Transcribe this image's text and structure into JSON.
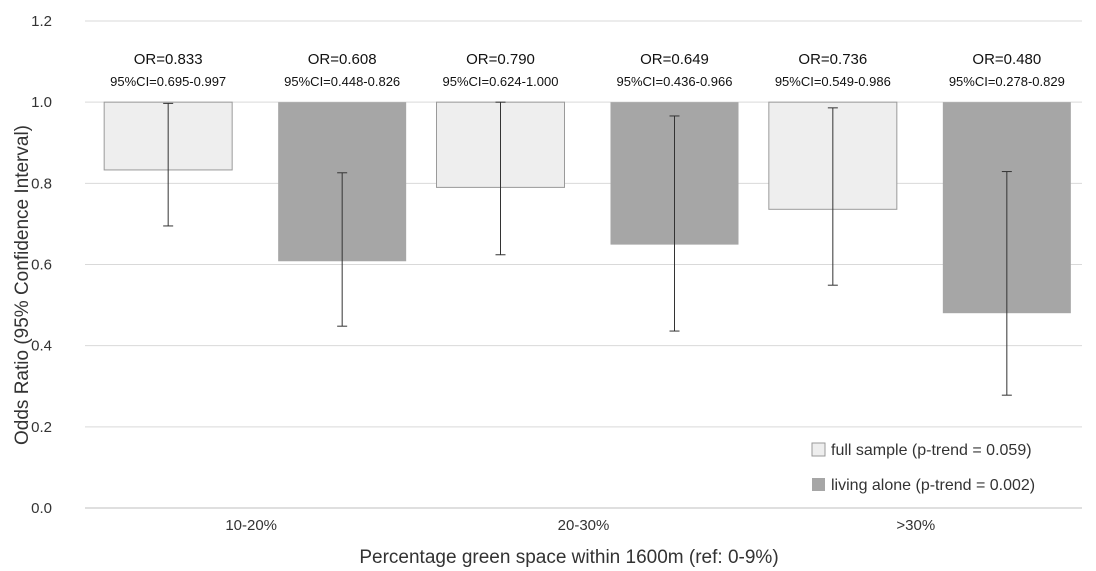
{
  "chart_data": {
    "type": "bar",
    "title": "",
    "xlabel": "Percentage green space within 1600m (ref: 0-9%)",
    "ylabel": "Odds Ratio (95% Confidence Interval)",
    "ylim": [
      0,
      1.2
    ],
    "yticks": [
      "0.0",
      "0.2",
      "0.4",
      "0.6",
      "0.8",
      "1.0",
      "1.2"
    ],
    "baseline": 1.0,
    "grid": true,
    "legend_position": "bottom-right",
    "categories": [
      "10-20%",
      "20-30%",
      ">30%"
    ],
    "series": [
      {
        "name": "full sample (p-trend = 0.059)",
        "color": "#eeeeee",
        "values": [
          0.833,
          0.79,
          0.736
        ],
        "ci_low": [
          0.695,
          0.624,
          0.549
        ],
        "ci_high": [
          0.997,
          1.0,
          0.986
        ],
        "or_labels": [
          "OR=0.833",
          "OR=0.790",
          "OR=0.736"
        ],
        "ci_labels": [
          "95%CI=0.695-0.997",
          "95%CI=0.624-1.000",
          "95%CI=0.549-0.986"
        ]
      },
      {
        "name": "living alone (p-trend = 0.002)",
        "color": "#a6a6a6",
        "values": [
          0.608,
          0.649,
          0.48
        ],
        "ci_low": [
          0.448,
          0.436,
          0.278
        ],
        "ci_high": [
          0.826,
          0.966,
          0.829
        ],
        "or_labels": [
          "OR=0.608",
          "OR=0.649",
          "OR=0.480"
        ],
        "ci_labels": [
          "95%CI=0.448-0.826",
          "95%CI=0.436-0.966",
          "95%CI=0.278-0.829"
        ]
      }
    ]
  }
}
